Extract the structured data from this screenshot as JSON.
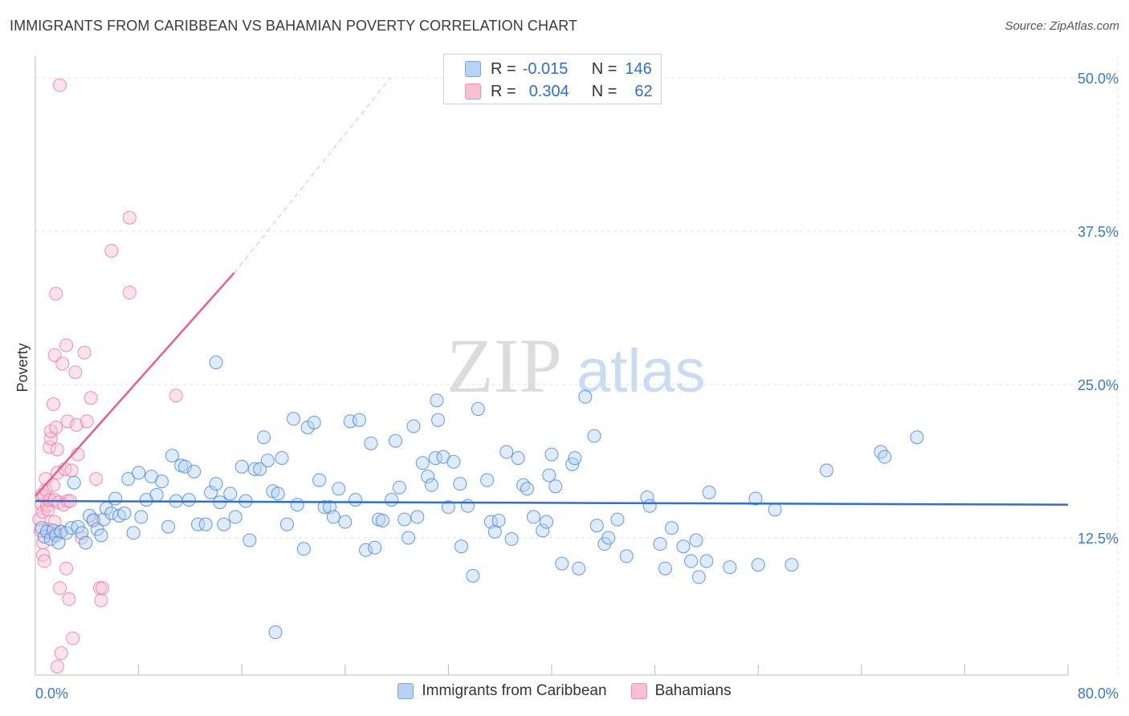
{
  "title": "IMMIGRANTS FROM CARIBBEAN VS BAHAMIAN POVERTY CORRELATION CHART",
  "source": "Source: ZipAtlas.com",
  "watermark": {
    "zip": "ZIP",
    "atlas": "atlas"
  },
  "legend_top": [
    {
      "r_label": "R =",
      "r_value": "-0.015",
      "n_label": "N =",
      "n_value": "146"
    },
    {
      "r_label": "R =",
      "r_value": "0.304",
      "n_label": "N =",
      "n_value": "62"
    }
  ],
  "legend_bottom": [
    "Immigrants from Caribbean",
    "Bahamians"
  ],
  "chart_data": {
    "type": "scatter",
    "title": "IMMIGRANTS FROM CARIBBEAN VS BAHAMIAN POVERTY CORRELATION CHART",
    "xlabel": "",
    "ylabel": "Poverty",
    "xlim": [
      0,
      80
    ],
    "ylim": [
      0,
      52
    ],
    "x_tick_labels": [
      "0.0%",
      "80.0%"
    ],
    "y_ticks": [
      12.5,
      25.0,
      37.5,
      50.0
    ],
    "y_tick_labels": [
      "12.5%",
      "25.0%",
      "37.5%",
      "50.0%"
    ],
    "grid": true,
    "colors": {
      "blue": "#4a8ad8",
      "blue_fill": "#b7d2f4",
      "blue_line": "#2f6fcf",
      "pink": "#ec6e9a",
      "pink_fill": "#f8c0d2",
      "pink_line": "#e5608d"
    },
    "series": [
      {
        "name": "Immigrants from Caribbean",
        "R": -0.015,
        "N": 146,
        "trend": {
          "x": [
            0,
            80
          ],
          "y": [
            15.5,
            15.2
          ],
          "style": "solid"
        },
        "points": [
          [
            0.5,
            13.3
          ],
          [
            0.7,
            12.6
          ],
          [
            0.9,
            13.0
          ],
          [
            1.2,
            12.4
          ],
          [
            1.4,
            13.1
          ],
          [
            1.6,
            12.7
          ],
          [
            1.8,
            12.1
          ],
          [
            2.0,
            13.0
          ],
          [
            2.4,
            12.9
          ],
          [
            2.8,
            13.3
          ],
          [
            3.0,
            17.0
          ],
          [
            3.3,
            13.4
          ],
          [
            3.6,
            12.9
          ],
          [
            3.9,
            12.1
          ],
          [
            4.2,
            14.3
          ],
          [
            4.5,
            13.9
          ],
          [
            4.8,
            13.2
          ],
          [
            5.1,
            12.7
          ],
          [
            5.3,
            14.0
          ],
          [
            5.5,
            14.9
          ],
          [
            5.9,
            14.5
          ],
          [
            6.2,
            15.7
          ],
          [
            6.5,
            14.3
          ],
          [
            6.9,
            14.5
          ],
          [
            7.2,
            17.3
          ],
          [
            7.6,
            12.9
          ],
          [
            8.0,
            17.8
          ],
          [
            8.2,
            14.2
          ],
          [
            8.6,
            15.6
          ],
          [
            9.0,
            17.5
          ],
          [
            9.4,
            16.0
          ],
          [
            9.8,
            17.1
          ],
          [
            10.3,
            13.4
          ],
          [
            10.6,
            19.2
          ],
          [
            10.9,
            15.5
          ],
          [
            11.3,
            18.4
          ],
          [
            11.6,
            18.3
          ],
          [
            11.9,
            15.6
          ],
          [
            12.3,
            17.9
          ],
          [
            12.6,
            13.6
          ],
          [
            13.2,
            13.6
          ],
          [
            13.6,
            16.2
          ],
          [
            14.0,
            16.9
          ],
          [
            14.3,
            15.4
          ],
          [
            14.6,
            13.6
          ],
          [
            15.1,
            16.1
          ],
          [
            15.5,
            14.2
          ],
          [
            16.0,
            18.3
          ],
          [
            16.3,
            15.5
          ],
          [
            16.6,
            12.3
          ],
          [
            17.0,
            18.1
          ],
          [
            17.4,
            18.1
          ],
          [
            17.7,
            20.7
          ],
          [
            18.0,
            18.8
          ],
          [
            18.4,
            16.3
          ],
          [
            18.8,
            16.1
          ],
          [
            19.1,
            19.0
          ],
          [
            19.5,
            13.6
          ],
          [
            20.0,
            22.2
          ],
          [
            20.3,
            15.2
          ],
          [
            20.8,
            11.6
          ],
          [
            21.1,
            21.5
          ],
          [
            21.6,
            21.9
          ],
          [
            22.0,
            17.2
          ],
          [
            22.4,
            15.0
          ],
          [
            22.8,
            15.0
          ],
          [
            23.1,
            14.2
          ],
          [
            23.5,
            16.5
          ],
          [
            24.0,
            13.8
          ],
          [
            24.4,
            22.0
          ],
          [
            24.8,
            15.6
          ],
          [
            25.1,
            22.1
          ],
          [
            25.6,
            11.5
          ],
          [
            26.0,
            20.2
          ],
          [
            26.3,
            11.7
          ],
          [
            26.6,
            14.0
          ],
          [
            26.9,
            13.9
          ],
          [
            27.6,
            15.6
          ],
          [
            27.9,
            20.4
          ],
          [
            28.2,
            16.6
          ],
          [
            28.6,
            14.0
          ],
          [
            28.9,
            12.5
          ],
          [
            29.3,
            21.6
          ],
          [
            29.6,
            14.2
          ],
          [
            30.0,
            18.6
          ],
          [
            30.4,
            17.5
          ],
          [
            30.7,
            16.8
          ],
          [
            31.0,
            19.0
          ],
          [
            31.2,
            22.1
          ],
          [
            31.6,
            19.1
          ],
          [
            31.1,
            23.7
          ],
          [
            32.0,
            15.0
          ],
          [
            32.4,
            18.7
          ],
          [
            32.9,
            16.9
          ],
          [
            33.0,
            11.8
          ],
          [
            33.5,
            15.1
          ],
          [
            33.9,
            9.4
          ],
          [
            34.3,
            23.0
          ],
          [
            35.0,
            17.2
          ],
          [
            35.3,
            13.8
          ],
          [
            35.6,
            13.0
          ],
          [
            35.9,
            13.9
          ],
          [
            36.5,
            19.5
          ],
          [
            36.9,
            12.4
          ],
          [
            37.4,
            19.0
          ],
          [
            37.8,
            16.8
          ],
          [
            38.1,
            16.5
          ],
          [
            38.6,
            14.2
          ],
          [
            39.3,
            13.1
          ],
          [
            39.6,
            13.8
          ],
          [
            39.8,
            17.6
          ],
          [
            40.0,
            19.3
          ],
          [
            40.3,
            16.7
          ],
          [
            40.8,
            10.4
          ],
          [
            41.6,
            18.5
          ],
          [
            41.8,
            19.0
          ],
          [
            42.1,
            10.0
          ],
          [
            42.6,
            24.0
          ],
          [
            43.3,
            20.8
          ],
          [
            43.5,
            13.5
          ],
          [
            44.1,
            12.0
          ],
          [
            44.4,
            12.5
          ],
          [
            45.1,
            14.0
          ],
          [
            45.8,
            11.0
          ],
          [
            47.4,
            15.8
          ],
          [
            47.6,
            15.1
          ],
          [
            48.4,
            12.0
          ],
          [
            48.8,
            10.0
          ],
          [
            49.3,
            13.3
          ],
          [
            50.2,
            11.8
          ],
          [
            50.8,
            10.6
          ],
          [
            51.2,
            12.3
          ],
          [
            51.4,
            9.3
          ],
          [
            52.0,
            10.6
          ],
          [
            52.2,
            16.2
          ],
          [
            53.8,
            10.1
          ],
          [
            55.8,
            15.7
          ],
          [
            56.0,
            10.3
          ],
          [
            57.3,
            14.8
          ],
          [
            58.6,
            10.3
          ],
          [
            61.3,
            18.0
          ],
          [
            65.5,
            19.5
          ],
          [
            65.8,
            19.1
          ],
          [
            68.3,
            20.7
          ],
          [
            18.6,
            4.8
          ],
          [
            14.0,
            26.8
          ]
        ]
      },
      {
        "name": "Bahamians",
        "R": 0.304,
        "N": 62,
        "trend": {
          "x": [
            0,
            15.4
          ],
          "y": [
            15.9,
            34.1
          ],
          "dashed_to": [
            27.5,
            50
          ],
          "style": "solid-then-dashed"
        },
        "points": [
          [
            0.3,
            14.0
          ],
          [
            0.4,
            13.1
          ],
          [
            0.5,
            15.2
          ],
          [
            0.5,
            16.0
          ],
          [
            0.6,
            14.6
          ],
          [
            0.6,
            12.1
          ],
          [
            0.6,
            11.1
          ],
          [
            0.7,
            10.6
          ],
          [
            0.7,
            15.9
          ],
          [
            0.8,
            16.4
          ],
          [
            0.8,
            17.3
          ],
          [
            0.9,
            15.1
          ],
          [
            1.0,
            13.2
          ],
          [
            1.0,
            14.8
          ],
          [
            1.1,
            19.9
          ],
          [
            1.1,
            15.6
          ],
          [
            1.2,
            20.6
          ],
          [
            1.2,
            21.2
          ],
          [
            1.3,
            12.9
          ],
          [
            1.4,
            23.4
          ],
          [
            1.4,
            16.8
          ],
          [
            1.5,
            13.8
          ],
          [
            1.5,
            15.6
          ],
          [
            1.5,
            27.4
          ],
          [
            1.6,
            21.5
          ],
          [
            1.6,
            12.9
          ],
          [
            1.6,
            32.4
          ],
          [
            1.7,
            17.8
          ],
          [
            1.7,
            19.7
          ],
          [
            1.7,
            2.0
          ],
          [
            1.8,
            15.4
          ],
          [
            1.9,
            49.4
          ],
          [
            1.9,
            8.4
          ],
          [
            2.0,
            13.0
          ],
          [
            2.0,
            3.1
          ],
          [
            2.1,
            26.7
          ],
          [
            2.2,
            15.2
          ],
          [
            2.3,
            18.1
          ],
          [
            2.4,
            28.2
          ],
          [
            2.4,
            10.0
          ],
          [
            2.5,
            22.0
          ],
          [
            2.5,
            15.5
          ],
          [
            2.6,
            7.5
          ],
          [
            2.7,
            15.5
          ],
          [
            2.8,
            18.0
          ],
          [
            2.9,
            4.3
          ],
          [
            3.1,
            26.0
          ],
          [
            3.2,
            21.7
          ],
          [
            3.3,
            19.3
          ],
          [
            3.6,
            12.5
          ],
          [
            3.8,
            27.6
          ],
          [
            4.0,
            22.0
          ],
          [
            4.3,
            23.9
          ],
          [
            4.5,
            14.0
          ],
          [
            4.7,
            17.3
          ],
          [
            5.0,
            8.4
          ],
          [
            5.1,
            7.4
          ],
          [
            5.2,
            8.4
          ],
          [
            5.9,
            35.9
          ],
          [
            7.3,
            38.6
          ],
          [
            7.3,
            32.5
          ],
          [
            10.9,
            24.1
          ]
        ]
      }
    ]
  }
}
